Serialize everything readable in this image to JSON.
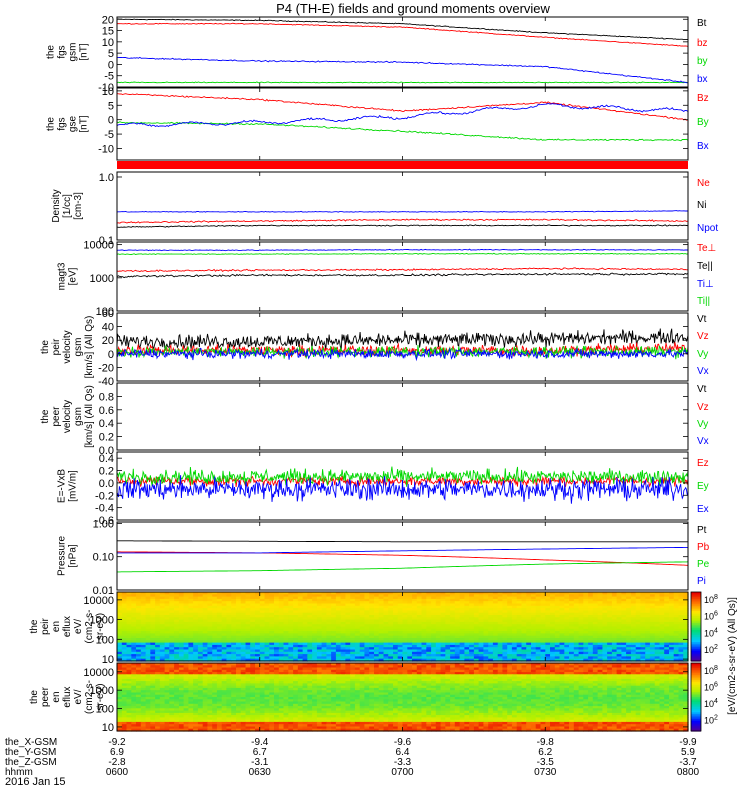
{
  "title": "P4 (TH-E) fields and ground moments overview",
  "date": "2016 Jan 15",
  "colors": {
    "black": "#000000",
    "red": "#ff0000",
    "green": "#00d800",
    "blue": "#0000ff"
  },
  "time_axis": {
    "labels": [
      "0600",
      "0630",
      "0700",
      "0730",
      "0800"
    ],
    "rows": [
      {
        "name": "the_X-GSM",
        "values": [
          "-9.2",
          "-9.4",
          "-9.6",
          "-9.8",
          "-9.9"
        ]
      },
      {
        "name": "the_Y-GSM",
        "values": [
          "6.9",
          "6.7",
          "6.4",
          "6.2",
          "5.9"
        ]
      },
      {
        "name": "the_Z-GSM",
        "values": [
          "-2.8",
          "-3.1",
          "-3.3",
          "-3.5",
          "-3.7"
        ]
      },
      {
        "name": "hhmm",
        "values": [
          "0600",
          "0630",
          "0700",
          "0730",
          "0800"
        ]
      }
    ]
  },
  "chart_data": [
    {
      "type": "line",
      "id": "fgs_gsm",
      "ylabel": "the fgs gsm [nT]",
      "ylim": [
        -10,
        21
      ],
      "ticks": [
        20,
        15,
        10,
        5,
        0,
        -5,
        -10
      ],
      "tick_labels": [
        "20",
        "15",
        "10",
        "5",
        "0",
        "-5",
        "-10"
      ],
      "x": [
        "0600",
        "0630",
        "0700",
        "0730",
        "0800"
      ],
      "series": [
        {
          "name": "Bt",
          "color": "#000000",
          "values": [
            20,
            19.5,
            18,
            14,
            11
          ]
        },
        {
          "name": "bz",
          "color": "#ff0000",
          "values": [
            18,
            18,
            16.5,
            12,
            8
          ]
        },
        {
          "name": "by",
          "color": "#00d800",
          "values": [
            -8,
            -8,
            -8,
            -8,
            -8
          ]
        },
        {
          "name": "bx",
          "color": "#0000ff",
          "values": [
            3,
            1.5,
            1,
            -1,
            -8
          ]
        }
      ]
    },
    {
      "type": "line",
      "id": "fgs_gse",
      "ylabel": "the fgs gse [nT]",
      "ylim": [
        -14,
        11
      ],
      "ticks": [
        10,
        5,
        0,
        -5,
        -10
      ],
      "tick_labels": [
        "10",
        "5",
        "0",
        "-5",
        "-10"
      ],
      "x": [
        "0600",
        "0630",
        "0700",
        "0730",
        "0800"
      ],
      "series": [
        {
          "name": "Bz",
          "color": "#ff0000",
          "values": [
            9,
            7,
            3,
            6,
            0
          ]
        },
        {
          "name": "By",
          "color": "#00d800",
          "values": [
            -1,
            -1.5,
            -4,
            -7,
            -7
          ]
        },
        {
          "name": "Bx",
          "color": "#0000ff",
          "values": [
            -2,
            -1,
            1,
            5,
            3
          ]
        }
      ]
    },
    {
      "type": "line",
      "id": "density",
      "scale": "log",
      "ylabel": "Density [1/cc] [cm-3]",
      "ylim": [
        0.1,
        1.2
      ],
      "ticks": [
        1.0,
        0.1
      ],
      "tick_labels": [
        "1.0",
        "0.1"
      ],
      "x": [
        "0600",
        "0630",
        "0700",
        "0730",
        "0800"
      ],
      "series": [
        {
          "name": "Ne",
          "color": "#ff0000",
          "values": [
            0.19,
            0.2,
            0.21,
            0.21,
            0.2
          ]
        },
        {
          "name": "Ni",
          "color": "#000000",
          "values": [
            0.16,
            0.17,
            0.17,
            0.17,
            0.17
          ]
        },
        {
          "name": "Npot",
          "color": "#0000ff",
          "values": [
            0.28,
            0.28,
            0.28,
            0.28,
            0.29
          ]
        }
      ]
    },
    {
      "type": "line",
      "id": "magt3",
      "scale": "log",
      "ylabel": "magt3 [eV]",
      "ylim": [
        100,
        12000
      ],
      "ticks": [
        10000,
        1000,
        100
      ],
      "tick_labels": [
        "10000",
        "1000",
        "100"
      ],
      "x": [
        "0600",
        "0630",
        "0700",
        "0730",
        "0800"
      ],
      "series": [
        {
          "name": "Te⊥",
          "color": "#ff0000",
          "values": [
            1600,
            1700,
            1750,
            1900,
            1800
          ]
        },
        {
          "name": "Te||",
          "color": "#000000",
          "values": [
            1100,
            1200,
            1200,
            1300,
            1300
          ]
        },
        {
          "name": "Ti⊥",
          "color": "#0000ff",
          "values": [
            6800,
            6800,
            7000,
            7000,
            6900
          ]
        },
        {
          "name": "Ti||",
          "color": "#00d800",
          "values": [
            5200,
            5200,
            5300,
            5300,
            5300
          ]
        }
      ]
    },
    {
      "type": "line",
      "id": "peir_velocity",
      "ylabel": "the peir velocity gsm [km/s] (All Qs)",
      "ylim": [
        -40,
        60
      ],
      "ticks": [
        60,
        40,
        20,
        0,
        -20,
        -40
      ],
      "tick_labels": [
        "60",
        "40",
        "20",
        "0",
        "-20",
        "-40"
      ],
      "x": [
        "0600",
        "0630",
        "0700",
        "0730",
        "0800"
      ],
      "series": [
        {
          "name": "Vt",
          "color": "#000000",
          "values": [
            18,
            18,
            20,
            22,
            25
          ]
        },
        {
          "name": "Vz",
          "color": "#ff0000",
          "values": [
            5,
            5,
            5,
            5,
            8
          ]
        },
        {
          "name": "Vy",
          "color": "#00d800",
          "values": [
            3,
            3,
            3,
            3,
            3
          ]
        },
        {
          "name": "Vx",
          "color": "#0000ff",
          "values": [
            0,
            0,
            0,
            0,
            0
          ]
        }
      ]
    },
    {
      "type": "line",
      "id": "peer_velocity",
      "ylabel": "the peer velocity gsm [km/s] (All Qs)",
      "ylim": [
        0,
        1
      ],
      "ticks": [
        0.8,
        0.6,
        0.4,
        0.2,
        0.0
      ],
      "tick_labels": [
        "0.8",
        "0.6",
        "0.4",
        "0.2",
        "0.0"
      ],
      "x": [],
      "series": [
        {
          "name": "Vt",
          "color": "#000000",
          "values": []
        },
        {
          "name": "Vz",
          "color": "#ff0000",
          "values": []
        },
        {
          "name": "Vy",
          "color": "#00d800",
          "values": []
        },
        {
          "name": "Vx",
          "color": "#0000ff",
          "values": []
        }
      ]
    },
    {
      "type": "line",
      "id": "efield",
      "ylabel": "E=-VxB [mV/m]",
      "ylim": [
        -0.6,
        0.5
      ],
      "ticks": [
        0.4,
        0.2,
        0.0,
        -0.2,
        -0.4,
        -0.6
      ],
      "tick_labels": [
        "0.4",
        "0.2",
        "0.0",
        "-0.2",
        "-0.4",
        "-0.6"
      ],
      "x": [
        "0600",
        "0630",
        "0700",
        "0730",
        "0800"
      ],
      "series": [
        {
          "name": "Ez",
          "color": "#ff0000",
          "values": [
            0.03,
            0.03,
            0.03,
            0.03,
            0.03
          ]
        },
        {
          "name": "Ey",
          "color": "#00d800",
          "values": [
            0.1,
            0.1,
            0.1,
            0.1,
            0.1
          ]
        },
        {
          "name": "Ex",
          "color": "#0000ff",
          "values": [
            -0.1,
            -0.1,
            -0.1,
            -0.1,
            -0.1
          ]
        }
      ]
    },
    {
      "type": "line",
      "id": "pressure",
      "scale": "log",
      "ylabel": "Pressure [nPa]",
      "ylim": [
        0.01,
        1.1
      ],
      "ticks": [
        1.0,
        0.1,
        0.01
      ],
      "tick_labels": [
        "1.00",
        "0.10",
        "0.01"
      ],
      "x": [
        "0600",
        "0630",
        "0700",
        "0730",
        "0800"
      ],
      "series": [
        {
          "name": "Pt",
          "color": "#000000",
          "values": [
            0.3,
            0.29,
            0.28,
            0.28,
            0.28
          ]
        },
        {
          "name": "Pb",
          "color": "#ff0000",
          "values": [
            0.14,
            0.13,
            0.11,
            0.08,
            0.055
          ]
        },
        {
          "name": "Pe",
          "color": "#00d800",
          "values": [
            0.035,
            0.038,
            0.045,
            0.06,
            0.07
          ]
        },
        {
          "name": "Pi",
          "color": "#0000ff",
          "values": [
            0.13,
            0.13,
            0.15,
            0.17,
            0.19
          ]
        }
      ]
    },
    {
      "type": "heatmap",
      "id": "peir_en_eflux",
      "scale": "log",
      "ylabel": "the peir en eflux eV/(cm2-s-sr-eV)",
      "ylim": [
        8,
        25000
      ],
      "ticks": [
        10000,
        1000,
        100,
        10
      ],
      "tick_labels": [
        "10000",
        "1000",
        "100",
        "10"
      ],
      "colorbar": {
        "label": "[eV/(cm2-s-sr-eV) (All Qs)]",
        "range_exp": [
          1,
          8
        ],
        "ticks": [
          "10^8",
          "10^6",
          "10^4",
          "10^2"
        ]
      }
    },
    {
      "type": "heatmap",
      "id": "peer_en_eflux",
      "scale": "log",
      "ylabel": "the peer en eflux eV/(cm2-s-sr-eV)",
      "ylim": [
        6,
        30000
      ],
      "ticks": [
        10000,
        1000,
        100,
        10
      ],
      "tick_labels": [
        "10000",
        "1000",
        "100",
        "10"
      ],
      "colorbar": {
        "label": "[eV/(cm2-s-sr-eV) (All Qs)]",
        "range_exp": [
          1,
          8
        ],
        "ticks": [
          "10^8",
          "10^6",
          "10^4",
          "10^2"
        ]
      }
    }
  ]
}
